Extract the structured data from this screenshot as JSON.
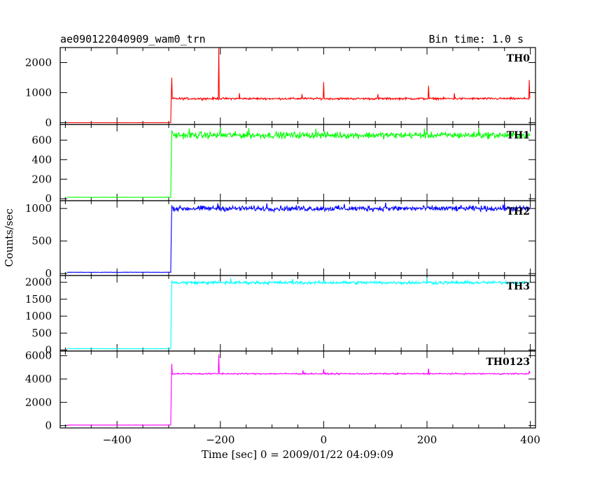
{
  "header": {
    "left_title": "ae090122040909_wam0_trn",
    "right_title": "Bin time: 1.0 s"
  },
  "chart_data": {
    "type": "line",
    "title": "ae090122040909_wam0_trn",
    "subtitle": "Bin time: 1.0 s",
    "xlabel": "Time [sec] 0 = 2009/01/22 04:09:09",
    "ylabel": "Counts/sec",
    "xlim": [
      -510,
      410
    ],
    "x_ticks": [
      -400,
      -200,
      0,
      200,
      400
    ],
    "x_tick_labels": [
      "−400",
      "−200",
      "0",
      "200",
      "400"
    ],
    "grid": false,
    "onset_time": -295,
    "panels": [
      {
        "name": "TH0",
        "color": "#ff0000",
        "ylim": [
          -60,
          2500
        ],
        "y_ticks": [
          0,
          1000,
          2000
        ],
        "y_tick_labels": [
          "0",
          "1000",
          "2000"
        ],
        "pre_level": 0,
        "onset_peak": 1500,
        "post_level": 800,
        "noise": 50,
        "spikes": [
          [
            -203,
            2500
          ],
          [
            -163,
            980
          ],
          [
            -42,
            950
          ],
          [
            0,
            1350
          ],
          [
            105,
            950
          ],
          [
            203,
            1230
          ],
          [
            253,
            980
          ],
          [
            398,
            1420
          ]
        ]
      },
      {
        "name": "TH1",
        "color": "#00ff00",
        "ylim": [
          -20,
          760
        ],
        "y_ticks": [
          0,
          200,
          400,
          600
        ],
        "y_tick_labels": [
          "0",
          "200",
          "400",
          "600"
        ],
        "pre_level": 15,
        "onset_peak": 700,
        "post_level": 650,
        "noise": 50,
        "spikes": [
          [
            -260,
            720
          ],
          [
            -200,
            730
          ],
          [
            -145,
            720
          ],
          [
            -15,
            715
          ],
          [
            195,
            720
          ],
          [
            300,
            720
          ]
        ]
      },
      {
        "name": "TH2",
        "color": "#0000ff",
        "ylim": [
          -30,
          1120
        ],
        "y_ticks": [
          0,
          500,
          1000
        ],
        "y_tick_labels": [
          "0",
          "500",
          "1000"
        ],
        "pre_level": 20,
        "onset_peak": 1050,
        "post_level": 1000,
        "noise": 60,
        "spikes": [
          [
            -205,
            1080
          ],
          [
            -110,
            1080
          ],
          [
            40,
            1070
          ],
          [
            120,
            1090
          ],
          [
            350,
            1080
          ]
        ]
      },
      {
        "name": "TH3",
        "color": "#00ffff",
        "ylim": [
          -30,
          2200
        ],
        "y_ticks": [
          0,
          500,
          1000,
          1500,
          2000
        ],
        "y_tick_labels": [
          "0",
          "500",
          "1000",
          "1500",
          "2000"
        ],
        "pre_level": 40,
        "onset_peak": 2050,
        "post_level": 1990,
        "noise": 70,
        "spikes": [
          [
            -180,
            2120
          ],
          [
            -60,
            2100
          ],
          [
            200,
            2130
          ]
        ]
      },
      {
        "name": "TH0123",
        "color": "#ff00ff",
        "ylim": [
          -200,
          6400
        ],
        "y_ticks": [
          0,
          2000,
          4000,
          6000
        ],
        "y_tick_labels": [
          "0",
          "2000",
          "4000",
          "6000"
        ],
        "pre_level": 50,
        "onset_peak": 5300,
        "post_level": 4450,
        "noise": 90,
        "spikes": [
          [
            -203,
            6100
          ],
          [
            -40,
            4750
          ],
          [
            0,
            4850
          ],
          [
            203,
            4900
          ],
          [
            398,
            4700
          ]
        ]
      }
    ]
  }
}
